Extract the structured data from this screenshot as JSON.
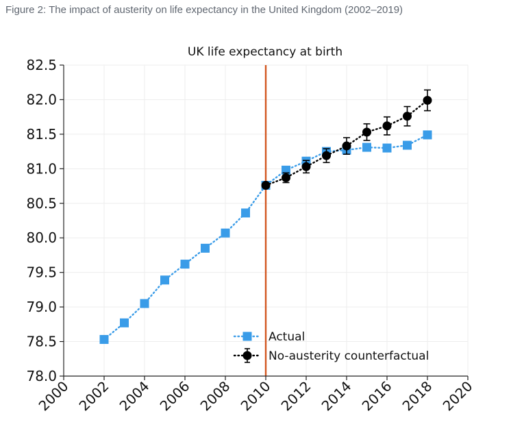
{
  "caption": "Figure 2: The impact of austerity on life expectancy in the United Kingdom (2002–2019)",
  "chart_data": {
    "type": "line",
    "title": "UK life expectancy at birth",
    "xlabel": "",
    "ylabel": "",
    "xlim": [
      2000,
      2020
    ],
    "ylim": [
      78.0,
      82.5
    ],
    "x_ticks": [
      "2000",
      "2002",
      "2004",
      "2006",
      "2008",
      "2010",
      "2012",
      "2014",
      "2016",
      "2018",
      "2020"
    ],
    "y_ticks": [
      "78.0",
      "78.5",
      "79.0",
      "79.5",
      "80.0",
      "80.5",
      "81.0",
      "81.5",
      "82.0",
      "82.5"
    ],
    "grid": true,
    "legend_position": "bottom-right",
    "vertical_line": {
      "x": 2010,
      "color": "#d2561f"
    },
    "series": [
      {
        "name": "Actual",
        "color": "#3a9ce8",
        "marker": "square",
        "line": "dotted",
        "x": [
          2002,
          2003,
          2004,
          2005,
          2006,
          2007,
          2008,
          2009,
          2010,
          2011,
          2012,
          2013,
          2014,
          2015,
          2016,
          2017,
          2018
        ],
        "values": [
          78.53,
          78.77,
          79.05,
          79.39,
          79.62,
          79.85,
          80.07,
          80.36,
          80.76,
          80.98,
          81.11,
          81.25,
          81.27,
          81.31,
          81.3,
          81.34,
          81.49
        ]
      },
      {
        "name": "No-austerity counterfactual",
        "color": "#000000",
        "marker": "circle",
        "line": "dotted",
        "x": [
          2010,
          2011,
          2012,
          2013,
          2014,
          2015,
          2016,
          2017,
          2018
        ],
        "values": [
          80.76,
          80.87,
          81.03,
          81.19,
          81.33,
          81.53,
          81.62,
          81.76,
          81.99
        ],
        "error": [
          0.0,
          0.07,
          0.09,
          0.1,
          0.12,
          0.12,
          0.13,
          0.14,
          0.15
        ]
      }
    ]
  }
}
